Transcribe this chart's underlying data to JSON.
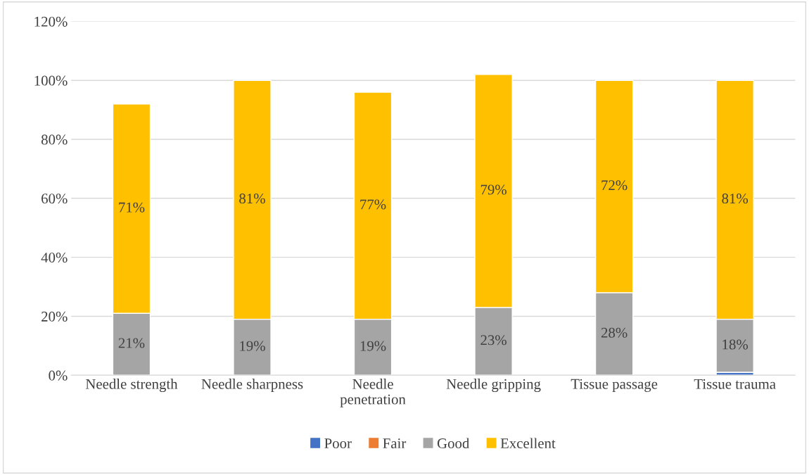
{
  "chart_data": {
    "type": "bar",
    "stacked": true,
    "categories": [
      "Needle strength",
      "Needle sharpness",
      "Needle\npenetration",
      "Needle gripping",
      "Tissue passage",
      "Tissue trauma"
    ],
    "series": [
      {
        "name": "Poor",
        "color": "#4472c4",
        "values": [
          0,
          0,
          0,
          0,
          0,
          1
        ],
        "value_labels": [
          null,
          null,
          null,
          null,
          null,
          null
        ]
      },
      {
        "name": "Fair",
        "color": "#ed7d31",
        "values": [
          0,
          0,
          0,
          0,
          0,
          0
        ],
        "value_labels": [
          null,
          null,
          null,
          null,
          null,
          null
        ]
      },
      {
        "name": "Good",
        "color": "#a5a5a5",
        "values": [
          21,
          19,
          19,
          23,
          28,
          18
        ],
        "value_labels": [
          "21%",
          "19%",
          "19%",
          "23%",
          "28%",
          "18%"
        ]
      },
      {
        "name": "Excellent",
        "color": "#ffc000",
        "values": [
          71,
          81,
          77,
          79,
          72,
          81
        ],
        "value_labels": [
          "71%",
          "81%",
          "77%",
          "79%",
          "72%",
          "81%"
        ]
      }
    ],
    "ylim": [
      0,
      120
    ],
    "yticks": [
      {
        "value": 0,
        "label": "0%"
      },
      {
        "value": 20,
        "label": "20%"
      },
      {
        "value": 40,
        "label": "40%"
      },
      {
        "value": 60,
        "label": "60%"
      },
      {
        "value": 80,
        "label": "80%"
      },
      {
        "value": 100,
        "label": "100%"
      },
      {
        "value": 120,
        "label": "120%"
      }
    ],
    "grid": "y",
    "legend": "bottom"
  }
}
